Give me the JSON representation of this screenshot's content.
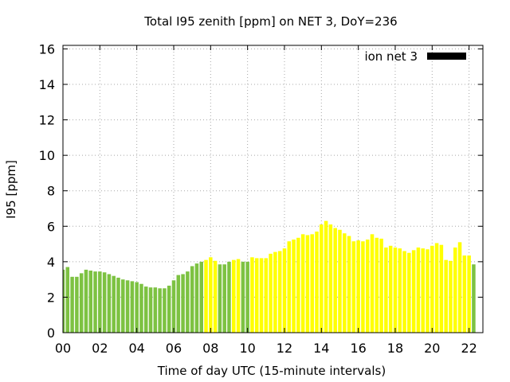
{
  "chart_data": {
    "type": "bar",
    "title": "Total I95 zenith [ppm] on NET 3, DoY=236",
    "xlabel": "Time of day UTC (15-minute intervals)",
    "ylabel": "I95 [ppm]",
    "xlim": [
      0,
      22.75
    ],
    "ylim": [
      0,
      16.2
    ],
    "x_ticks": [
      0,
      2,
      4,
      6,
      8,
      10,
      12,
      14,
      16,
      18,
      20,
      22
    ],
    "x_tick_labels": [
      "00",
      "02",
      "04",
      "06",
      "08",
      "10",
      "12",
      "14",
      "16",
      "18",
      "20",
      "22"
    ],
    "y_ticks": [
      0,
      2,
      4,
      6,
      8,
      10,
      12,
      14,
      16
    ],
    "y_tick_labels": [
      "0",
      "2",
      "4",
      "6",
      "8",
      "10",
      "12",
      "14",
      "16"
    ],
    "grid": true,
    "bar_interval_hours": 0.25,
    "colors": {
      "green": "#7dc242",
      "yellow": "#ffff00",
      "legend": "#000000"
    },
    "legend": {
      "label": "ion net 3",
      "position": "top-right"
    },
    "values": [
      3.55,
      3.7,
      3.15,
      3.15,
      3.35,
      3.55,
      3.5,
      3.45,
      3.45,
      3.4,
      3.3,
      3.2,
      3.1,
      3.0,
      2.95,
      2.9,
      2.85,
      2.75,
      2.6,
      2.55,
      2.55,
      2.5,
      2.5,
      2.65,
      2.95,
      3.25,
      3.3,
      3.45,
      3.75,
      3.9,
      4.0,
      4.1,
      4.25,
      4.05,
      3.85,
      3.85,
      4.0,
      4.1,
      4.15,
      4.0,
      4.0,
      4.25,
      4.2,
      4.2,
      4.2,
      4.45,
      4.55,
      4.6,
      4.75,
      5.15,
      5.25,
      5.35,
      5.55,
      5.5,
      5.55,
      5.7,
      6.1,
      6.3,
      6.1,
      5.9,
      5.8,
      5.6,
      5.45,
      5.15,
      5.2,
      5.15,
      5.25,
      5.55,
      5.35,
      5.3,
      4.8,
      4.9,
      4.8,
      4.75,
      4.6,
      4.5,
      4.65,
      4.8,
      4.75,
      4.7,
      4.9,
      5.05,
      4.95,
      4.1,
      4.05,
      4.8,
      5.1,
      4.35,
      4.35,
      3.85
    ],
    "colors_per_bar": [
      "g",
      "g",
      "g",
      "g",
      "g",
      "g",
      "g",
      "g",
      "g",
      "g",
      "g",
      "g",
      "g",
      "g",
      "g",
      "g",
      "g",
      "g",
      "g",
      "g",
      "g",
      "g",
      "g",
      "g",
      "g",
      "g",
      "g",
      "g",
      "g",
      "g",
      "g",
      "y",
      "y",
      "y",
      "g",
      "g",
      "g",
      "y",
      "y",
      "g",
      "g",
      "y",
      "y",
      "y",
      "y",
      "y",
      "y",
      "y",
      "y",
      "y",
      "y",
      "y",
      "y",
      "y",
      "y",
      "y",
      "y",
      "y",
      "y",
      "y",
      "y",
      "y",
      "y",
      "y",
      "y",
      "y",
      "y",
      "y",
      "y",
      "y",
      "y",
      "y",
      "y",
      "y",
      "y",
      "y",
      "y",
      "y",
      "y",
      "y",
      "y",
      "y",
      "y",
      "y",
      "y",
      "y",
      "y",
      "y",
      "y",
      "g"
    ]
  }
}
